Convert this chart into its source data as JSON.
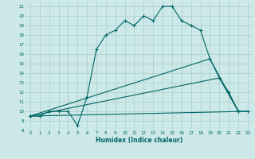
{
  "xlabel": "Humidex (Indice chaleur)",
  "xlim": [
    -0.5,
    23.5
  ],
  "ylim": [
    8,
    21.5
  ],
  "xticks": [
    0,
    1,
    2,
    3,
    4,
    5,
    6,
    7,
    8,
    9,
    10,
    11,
    12,
    13,
    14,
    15,
    16,
    17,
    18,
    19,
    20,
    21,
    22,
    23
  ],
  "yticks": [
    8,
    9,
    10,
    11,
    12,
    13,
    14,
    15,
    16,
    17,
    18,
    19,
    20,
    21
  ],
  "bg_color": "#cce8e8",
  "grid_color": "#aacccc",
  "line_color": "#006666",
  "line1": {
    "x": [
      0,
      1,
      2,
      3,
      4,
      5,
      6,
      7,
      8,
      9,
      10,
      11,
      12,
      13,
      14,
      15,
      16,
      17,
      18,
      19,
      20,
      21,
      22,
      23
    ],
    "y": [
      9.5,
      9.5,
      10,
      10,
      10,
      8.5,
      11.5,
      16.5,
      18,
      18.5,
      19.5,
      19,
      20,
      19.5,
      21,
      21,
      19.5,
      19,
      18.5,
      15.5,
      13.5,
      12,
      10,
      10
    ]
  },
  "line2": {
    "x": [
      0,
      19,
      22
    ],
    "y": [
      9.5,
      15.5,
      10
    ]
  },
  "line3": {
    "x": [
      0,
      20,
      22
    ],
    "y": [
      9.5,
      13.5,
      10
    ]
  },
  "line4": {
    "x": [
      0,
      23
    ],
    "y": [
      9.5,
      10
    ]
  }
}
